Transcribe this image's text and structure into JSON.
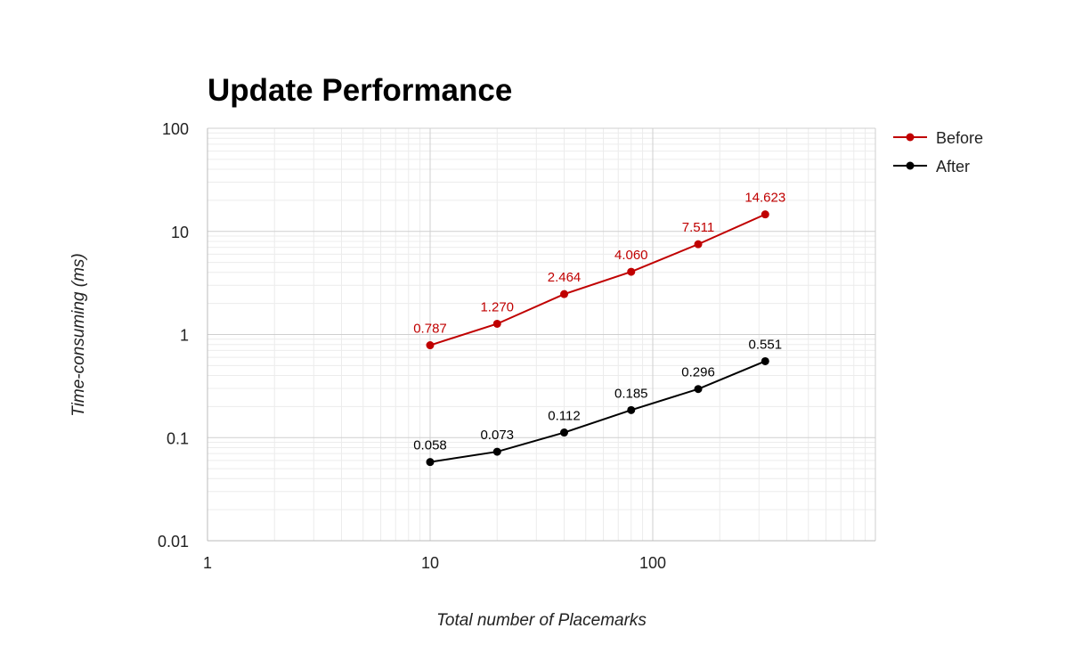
{
  "chart_data": {
    "type": "line",
    "title": "Update Performance",
    "xlabel": "Total number of Placemarks",
    "ylabel": "Time-consuming (ms)",
    "x_scale": "log",
    "y_scale": "log",
    "xlim": [
      1,
      1000
    ],
    "ylim": [
      0.01,
      100
    ],
    "x_ticks": [
      "1",
      "10",
      "100"
    ],
    "y_ticks": [
      "100",
      "10",
      "1",
      "0.1",
      "0.01"
    ],
    "grid": true,
    "legend_position": "right",
    "x": [
      10,
      20,
      40,
      80,
      160,
      320
    ],
    "series": [
      {
        "name": "Before",
        "color": "#c00000",
        "values": [
          0.787,
          1.27,
          2.464,
          4.06,
          7.511,
          14.623
        ],
        "labels": [
          "0.787",
          "1.270",
          "2.464",
          "4.060",
          "7.511",
          "14.623"
        ]
      },
      {
        "name": "After",
        "color": "#000000",
        "values": [
          0.058,
          0.073,
          0.112,
          0.185,
          0.296,
          0.551
        ],
        "labels": [
          "0.058",
          "0.073",
          "0.112",
          "0.185",
          "0.296",
          "0.551"
        ]
      }
    ]
  }
}
